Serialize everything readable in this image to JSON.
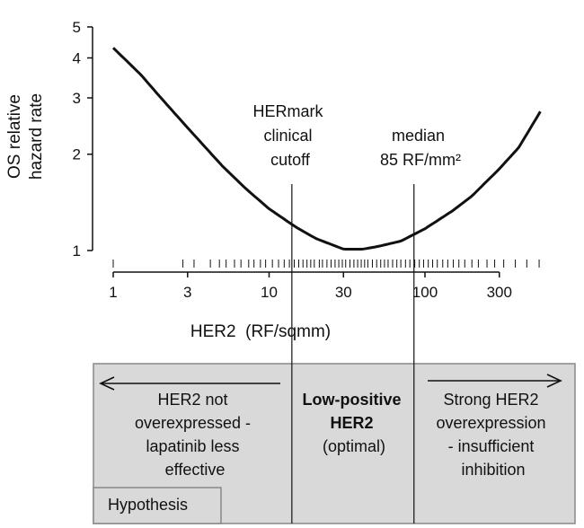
{
  "chart_data": {
    "type": "line",
    "x_scale": "log",
    "y_scale": "log",
    "xlim": [
      1,
      600
    ],
    "ylim": [
      0.92,
      5.2
    ],
    "xlabel": "HER2  (RF/sqmm)",
    "ylabel": [
      "OS relative",
      "hazard rate"
    ],
    "x_ticks": [
      {
        "value": 1,
        "label": "1"
      },
      {
        "value": 3,
        "label": "3"
      },
      {
        "value": 10,
        "label": "10"
      },
      {
        "value": 30,
        "label": "30"
      },
      {
        "value": 100,
        "label": "100"
      },
      {
        "value": 300,
        "label": "300"
      }
    ],
    "y_ticks": [
      {
        "value": 1,
        "label": "1"
      },
      {
        "value": 2,
        "label": "2"
      },
      {
        "value": 3,
        "label": "3"
      },
      {
        "value": 4,
        "label": "4"
      },
      {
        "value": 5,
        "label": "5"
      }
    ],
    "series": [
      {
        "name": "OS relative hazard rate",
        "x": [
          1,
          1.5,
          2,
          3,
          5,
          7,
          10,
          15,
          20,
          30,
          40,
          50,
          70,
          100,
          150,
          200,
          300,
          400,
          550
        ],
        "y": [
          4.3,
          3.55,
          3.02,
          2.42,
          1.84,
          1.57,
          1.35,
          1.18,
          1.09,
          1.01,
          1.01,
          1.03,
          1.07,
          1.17,
          1.33,
          1.48,
          1.8,
          2.1,
          2.72
        ]
      }
    ],
    "rug_x": [
      1,
      2.8,
      3.3,
      4.2,
      4.8,
      5.3,
      6,
      6.6,
      7.4,
      8,
      8.8,
      9.5,
      10.5,
      11.5,
      12.5,
      13.5,
      14.5,
      15.5,
      16.5,
      17.5,
      18.5,
      19.5,
      21,
      22,
      23.5,
      25,
      26.5,
      28,
      29.5,
      31,
      33,
      35,
      37,
      39,
      41,
      43,
      46,
      49,
      52,
      55,
      58,
      62,
      66,
      70,
      75,
      80,
      86,
      92,
      98,
      105,
      112,
      120,
      130,
      140,
      152,
      165,
      180,
      200,
      220,
      250,
      280,
      320,
      380,
      450,
      540
    ],
    "reference_lines": [
      {
        "x": 14,
        "label": [
          "HERmark",
          "clinical",
          "cutoff"
        ]
      },
      {
        "x": 85,
        "label": [
          "median",
          "85 RF/mm²"
        ]
      }
    ],
    "annotations": {
      "left": [
        "HER2 not",
        "overexpressed -",
        "lapatinib less",
        "effective"
      ],
      "center": [
        "Low-positive",
        "HER2",
        "(optimal)"
      ],
      "right": [
        "Strong HER2",
        "overexpression",
        "- insufficient",
        "inhibition"
      ],
      "box_label": "Hypothesis"
    },
    "colors": {
      "box_fill": "#d9d9d9",
      "line": "#111111",
      "border": "#888888"
    }
  }
}
